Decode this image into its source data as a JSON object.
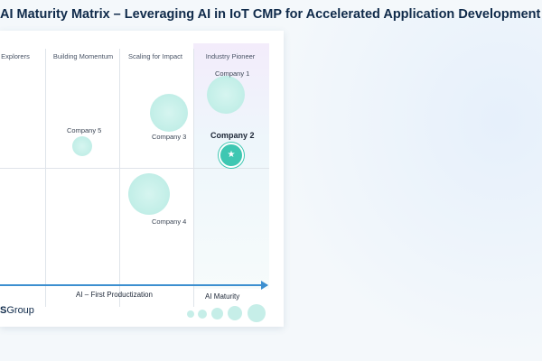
{
  "title": "AI Maturity Matrix – Leveraging AI in IoT CMP for Accelerated Application Development and Depl",
  "brand": {
    "prefix": "S",
    "name": "Group"
  },
  "chart_data": {
    "type": "scatter",
    "columns": [
      "Explorers",
      "Building Momentum",
      "Scaling for Impact",
      "Industry Pioneer"
    ],
    "x_axis_label": "AI – First Productization",
    "size_legend_label": "AI Maturity",
    "points": [
      {
        "label": "Company 1",
        "column": "Industry Pioneer"
      },
      {
        "label": "Company 2",
        "column": "Industry Pioneer",
        "highlighted": true,
        "marker": "star"
      },
      {
        "label": "Company 3",
        "column": "Scaling for Impact"
      },
      {
        "label": "Company 4",
        "column": "Scaling for Impact"
      },
      {
        "label": "Company 5",
        "column": "Building Momentum"
      }
    ],
    "grid": true
  },
  "colors": {
    "bubble": "#c6eee8",
    "highlight": "#3ec7b2",
    "axis": "#3c8fd0",
    "title": "#0f2a4a"
  }
}
